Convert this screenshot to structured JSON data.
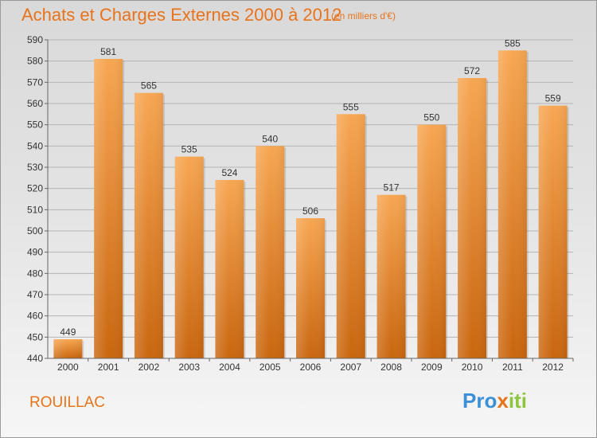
{
  "header": {
    "title": "Achats et Charges Externes 2000 à 2012",
    "subtitle": "(en milliers d'€)"
  },
  "footer": {
    "commune": "ROUILLAC",
    "logo_text": "Proxiti"
  },
  "colors": {
    "accent": "#e8731a",
    "bar_top": "#f7a652",
    "bar_bottom": "#c9660f",
    "grid": "#b4b4b4"
  },
  "chart_data": {
    "type": "bar",
    "title": "Achats et Charges Externes 2000 à 2012",
    "subtitle": "(en milliers d'€)",
    "categories": [
      "2000",
      "2001",
      "2002",
      "2003",
      "2004",
      "2005",
      "2006",
      "2007",
      "2008",
      "2009",
      "2010",
      "2011",
      "2012"
    ],
    "values": [
      449,
      581,
      565,
      535,
      524,
      540,
      506,
      555,
      517,
      550,
      572,
      585,
      559
    ],
    "ylim": [
      440,
      590
    ],
    "yticks": [
      440,
      450,
      460,
      470,
      480,
      490,
      500,
      510,
      520,
      530,
      540,
      550,
      560,
      570,
      580,
      590
    ],
    "grid": true,
    "data_labels": true
  }
}
